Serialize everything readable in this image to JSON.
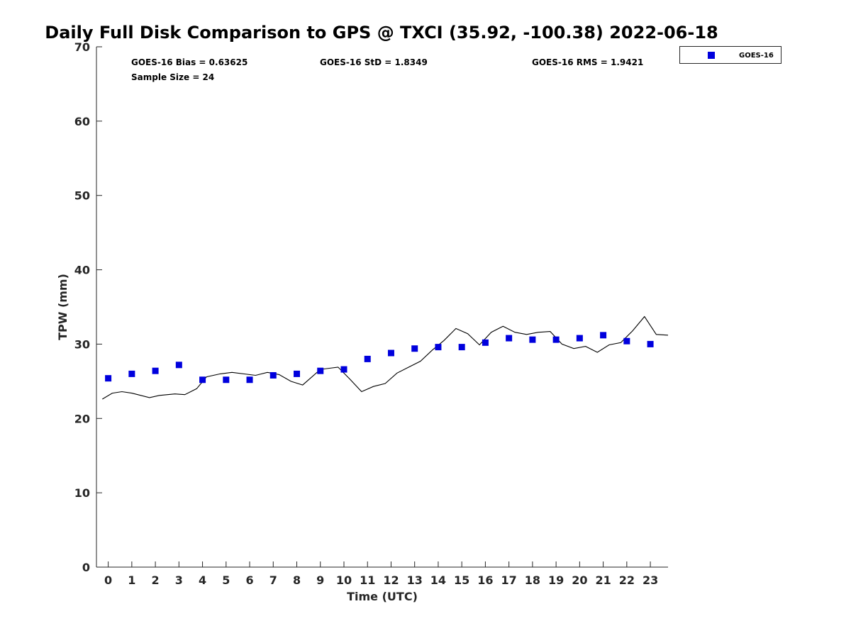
{
  "chart_data": {
    "type": "scatter",
    "title": "Daily Full Disk Comparison to GPS @ TXCI (35.92, -100.38) 2022-06-18",
    "xlabel": "Time (UTC)",
    "ylabel": "TPW (mm)",
    "xlim": [
      -0.5,
      23.75
    ],
    "ylim": [
      0,
      70
    ],
    "x_ticks": [
      0,
      1,
      2,
      3,
      4,
      5,
      6,
      7,
      8,
      9,
      10,
      11,
      12,
      13,
      14,
      15,
      16,
      17,
      18,
      19,
      20,
      21,
      22,
      23
    ],
    "y_ticks": [
      0,
      10,
      20,
      30,
      40,
      50,
      60,
      70
    ],
    "grid": false,
    "legend_position": "top-right",
    "stats": {
      "bias": "GOES-16 Bias = 0.63625",
      "std": "GOES-16 StD = 1.8349",
      "rms": "GOES-16 RMS = 1.9421",
      "sample": "Sample Size = 24"
    },
    "series": [
      {
        "name": "GOES-16",
        "style": "square-marker",
        "color": "#0000dd",
        "x": [
          0,
          1,
          2,
          3,
          4,
          5,
          6,
          7,
          8,
          9,
          10,
          11,
          12,
          13,
          14,
          15,
          16,
          17,
          18,
          19,
          20,
          21,
          22,
          23
        ],
        "y": [
          25.4,
          26.0,
          26.4,
          27.2,
          25.2,
          25.2,
          25.2,
          25.8,
          26.0,
          26.4,
          26.6,
          28.0,
          28.8,
          29.4,
          29.6,
          29.6,
          30.2,
          30.8,
          30.6,
          30.6,
          30.8,
          31.2,
          30.4,
          30.0
        ]
      },
      {
        "style": "line",
        "color": "#000000",
        "x": [
          -0.25,
          0.17,
          0.58,
          1.0,
          1.25,
          1.75,
          2.17,
          2.83,
          3.25,
          3.75,
          4.17,
          4.75,
          5.25,
          6.25,
          6.75,
          7.25,
          7.75,
          8.25,
          9.0,
          9.5,
          9.75,
          10.25,
          10.75,
          11.25,
          11.75,
          12.25,
          12.75,
          13.25,
          13.75,
          14.25,
          14.75,
          15.25,
          15.75,
          16.25,
          16.75,
          17.25,
          17.75,
          18.25,
          18.75,
          19.25,
          19.75,
          20.25,
          20.75,
          21.25,
          21.75,
          22.25,
          22.75,
          23.25,
          23.75
        ],
        "y": [
          22.6,
          23.4,
          23.6,
          23.4,
          23.2,
          22.8,
          23.1,
          23.3,
          23.2,
          24.0,
          25.6,
          26.0,
          26.2,
          25.8,
          26.2,
          25.9,
          25.0,
          24.5,
          26.6,
          26.8,
          26.9,
          25.3,
          23.6,
          24.3,
          24.7,
          26.1,
          26.9,
          27.7,
          29.2,
          30.5,
          32.1,
          31.4,
          29.9,
          31.6,
          32.4,
          31.6,
          31.3,
          31.6,
          31.7,
          30.0,
          29.4,
          29.7,
          28.9,
          29.9,
          30.2,
          31.8,
          33.7,
          31.3,
          31.2
        ]
      }
    ]
  }
}
